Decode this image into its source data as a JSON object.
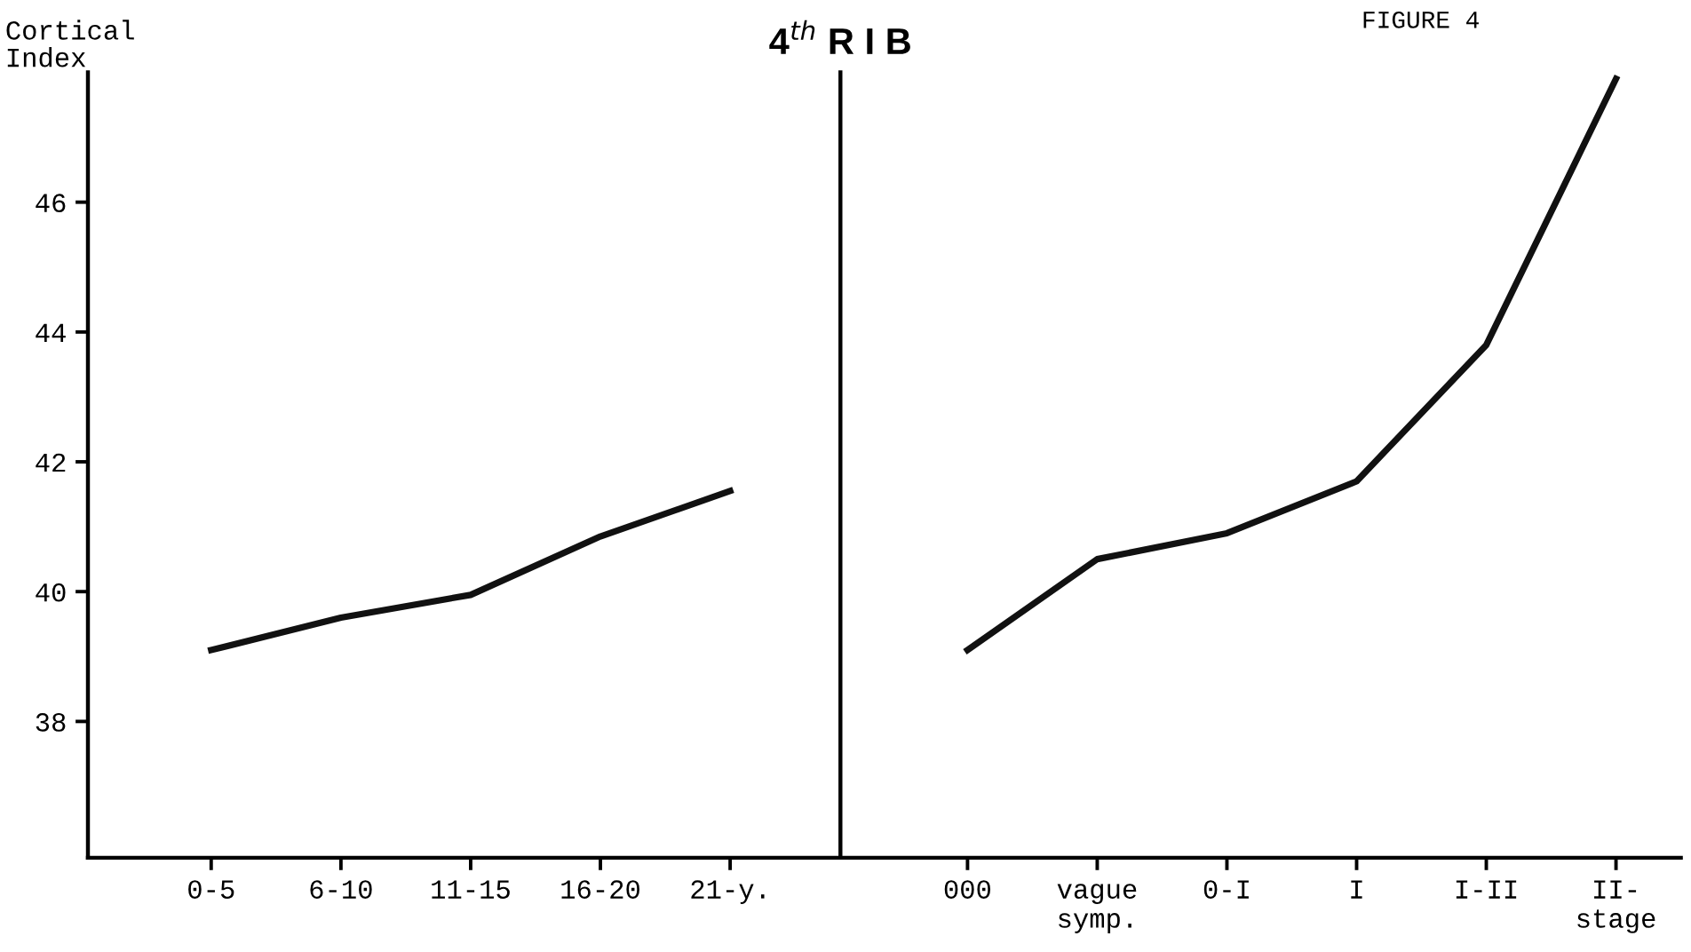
{
  "chart_data": [
    {
      "type": "line",
      "title": "4$^{th}$ R I B",
      "ylabel": "Cortical\nIndex",
      "categories": [
        "0-5",
        "6-10",
        "11-15",
        "16-20",
        "21-y."
      ],
      "series": [
        {
          "color": "#111111",
          "values": [
            39.1,
            39.6,
            39.95,
            40.85,
            41.55
          ]
        }
      ],
      "ylim": [
        35.9,
        48
      ],
      "yticks": [
        38,
        40,
        42,
        44,
        46
      ],
      "grid": false,
      "marker": "none",
      "line_style": "solid"
    },
    {
      "type": "line",
      "annotations": [
        "FIGURE 4"
      ],
      "categories": [
        "000",
        "vague\nsymp.",
        "0-I",
        "I",
        "I-II",
        "II-\nstage"
      ],
      "series": [
        {
          "color": "#111111",
          "values": [
            39.1,
            40.5,
            40.9,
            41.7,
            43.8,
            47.9
          ]
        }
      ],
      "ylim": [
        35.9,
        48
      ],
      "tick_labels": "x",
      "grid": false,
      "marker": "none",
      "line_style": "solid"
    }
  ]
}
